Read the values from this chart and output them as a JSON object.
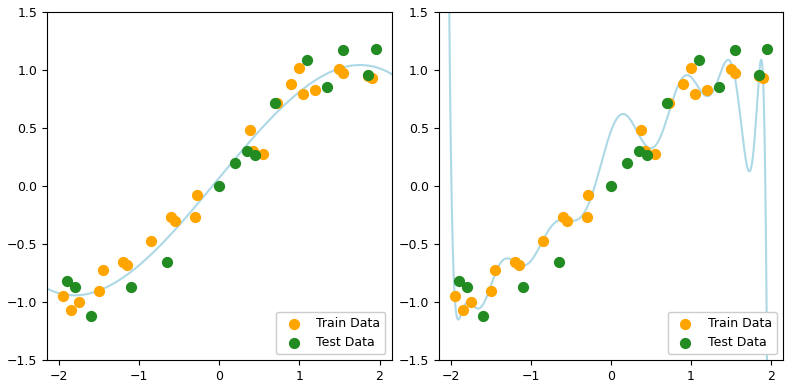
{
  "train_x": [
    -1.95,
    -1.85,
    -1.75,
    -1.5,
    -1.45,
    -1.2,
    -1.15,
    -0.85,
    -0.6,
    -0.55,
    -0.3,
    -0.28,
    0.38,
    0.42,
    0.55,
    0.72,
    0.9,
    1.0,
    1.05,
    1.2,
    1.5,
    1.55,
    1.85,
    1.9
  ],
  "train_y": [
    -0.95,
    -1.07,
    -1.0,
    -0.9,
    -0.72,
    -0.65,
    -0.68,
    -0.47,
    -0.27,
    -0.3,
    -0.27,
    -0.08,
    0.48,
    0.3,
    0.28,
    0.72,
    0.88,
    1.02,
    0.79,
    0.83,
    1.01,
    0.97,
    0.95,
    0.93
  ],
  "test_x": [
    -1.9,
    -1.8,
    -1.6,
    -1.1,
    -0.65,
    0.0,
    0.2,
    0.35,
    0.45,
    0.7,
    1.1,
    1.35,
    1.55,
    1.85,
    1.95
  ],
  "test_y": [
    -0.82,
    -0.87,
    -1.12,
    -0.87,
    -0.65,
    0.0,
    0.2,
    0.3,
    0.27,
    0.72,
    1.09,
    0.85,
    1.17,
    0.96,
    1.18
  ],
  "curve_color": "#add8e6",
  "train_color": "#FFA500",
  "test_color": "#228B22",
  "ylim": [
    -1.5,
    1.5
  ],
  "xlim": [
    -2.2,
    2.2
  ],
  "marker_size": 50,
  "line_width": 1.5
}
